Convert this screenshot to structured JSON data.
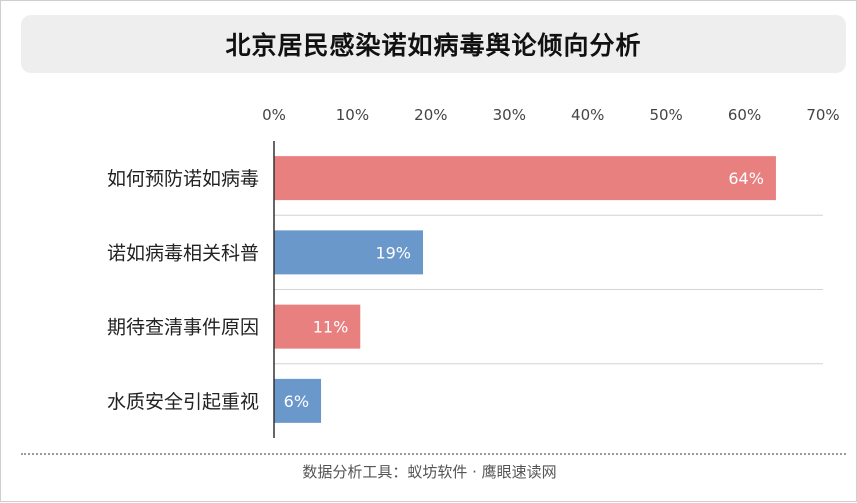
{
  "title": "北京居民感染诺如病毒舆论倾向分析",
  "footer": "数据分析工具：蚁坊软件 · 鹰眼速读网",
  "chart_data": {
    "type": "bar",
    "orientation": "horizontal",
    "categories": [
      "如何预防诺如病毒",
      "诺如病毒相关科普",
      "期待查清事件原因",
      "水质安全引起重视"
    ],
    "values": [
      64,
      19,
      11,
      6
    ],
    "value_labels": [
      "64%",
      "19%",
      "11%",
      "6%"
    ],
    "bar_colors": [
      "#e88080",
      "#6b98cb",
      "#e88080",
      "#6b98cb"
    ],
    "x_ticks": [
      "0%",
      "10%",
      "20%",
      "30%",
      "40%",
      "50%",
      "60%",
      "70%"
    ],
    "xlim": [
      0,
      70
    ],
    "xaxis_position": "top",
    "grid": true
  }
}
